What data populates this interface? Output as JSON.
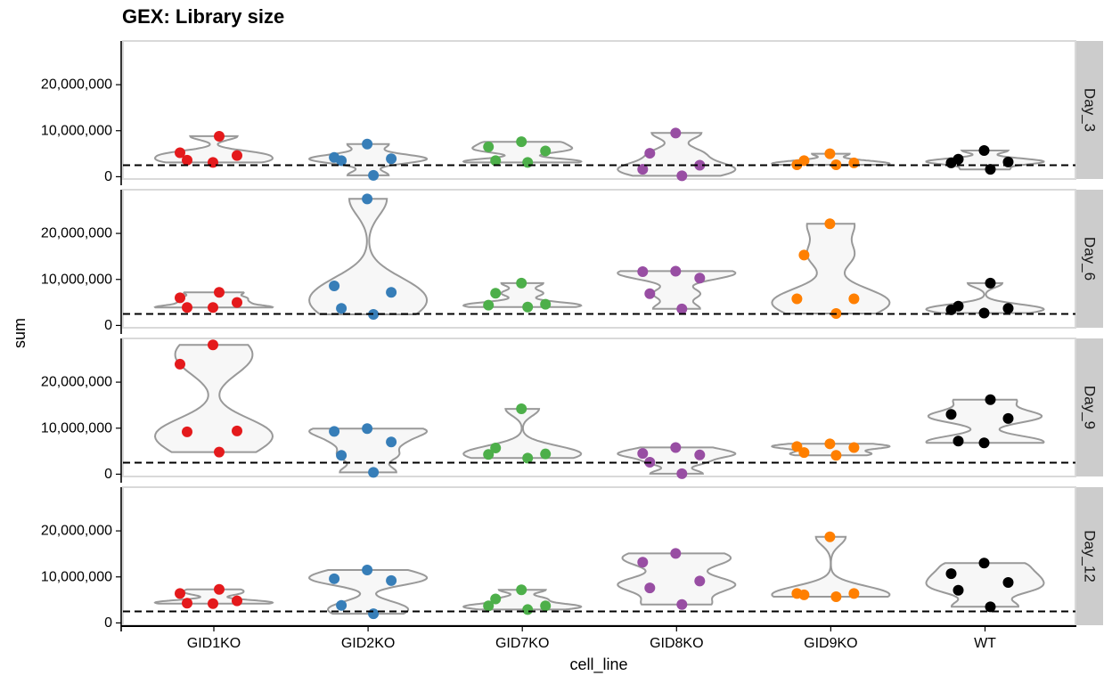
{
  "chart_data": {
    "type": "violin",
    "title": "GEX: Library size",
    "xlabel": "cell_line",
    "ylabel": "sum",
    "categories": [
      "GID1KO",
      "GID2KO",
      "GID7KO",
      "GID8KO",
      "GID9KO",
      "WT"
    ],
    "facets": [
      "Day_3",
      "Day_6",
      "Day_9",
      "Day_12"
    ],
    "y_ticks": [
      0,
      10000000,
      20000000
    ],
    "y_tick_labels": [
      "0",
      "10,000,000",
      "20,000,000"
    ],
    "ylim": [
      -500000,
      29500000
    ],
    "threshold": 2500000,
    "colors": {
      "GID1KO": "#e41a1c",
      "GID2KO": "#377eb8",
      "GID7KO": "#4daf4a",
      "GID8KO": "#984ea3",
      "GID9KO": "#ff7f00",
      "WT": "#000000"
    },
    "values": {
      "Day_3": {
        "GID1KO": [
          5200000,
          3600000,
          8800000,
          3100000,
          4600000
        ],
        "GID2KO": [
          4200000,
          3500000,
          300000,
          7100000,
          3900000
        ],
        "GID7KO": [
          6500000,
          3500000,
          3100000,
          7600000,
          5600000
        ],
        "GID8KO": [
          1600000,
          5100000,
          200000,
          9500000,
          2500000
        ],
        "GID9KO": [
          2600000,
          3500000,
          2600000,
          5000000,
          3000000
        ],
        "WT": [
          3000000,
          3800000,
          1600000,
          5700000,
          3200000
        ]
      },
      "Day_6": {
        "GID1KO": [
          6000000,
          3900000,
          7200000,
          3900000,
          5000000
        ],
        "GID2KO": [
          8600000,
          3700000,
          2400000,
          27500000,
          7200000
        ],
        "GID7KO": [
          4400000,
          7000000,
          4000000,
          9200000,
          4600000
        ],
        "GID8KO": [
          11700000,
          6900000,
          3600000,
          11800000,
          10300000
        ],
        "GID9KO": [
          5800000,
          15300000,
          2600000,
          22100000,
          5800000
        ],
        "WT": [
          3400000,
          4200000,
          9200000,
          2700000,
          3700000
        ]
      },
      "Day_9": {
        "GID1KO": [
          23900000,
          9200000,
          4800000,
          28100000,
          9400000
        ],
        "GID2KO": [
          9300000,
          4100000,
          400000,
          9900000,
          7000000
        ],
        "GID7KO": [
          4300000,
          5700000,
          3500000,
          14200000,
          4400000
        ],
        "GID8KO": [
          4500000,
          2600000,
          100000,
          5800000,
          4200000
        ],
        "GID9KO": [
          6000000,
          4700000,
          4100000,
          6600000,
          5800000
        ],
        "WT": [
          13000000,
          7200000,
          16200000,
          6800000,
          12100000
        ]
      },
      "Day_12": {
        "GID1KO": [
          6400000,
          4300000,
          7300000,
          4200000,
          4800000
        ],
        "GID2KO": [
          9600000,
          3800000,
          2000000,
          11500000,
          9200000
        ],
        "GID7KO": [
          3700000,
          5200000,
          2900000,
          7200000,
          3700000
        ],
        "GID8KO": [
          13200000,
          7600000,
          4000000,
          15100000,
          9100000
        ],
        "GID9KO": [
          6400000,
          6100000,
          5700000,
          18700000,
          6400000
        ],
        "WT": [
          10700000,
          7100000,
          3500000,
          13000000,
          8800000
        ]
      }
    }
  }
}
